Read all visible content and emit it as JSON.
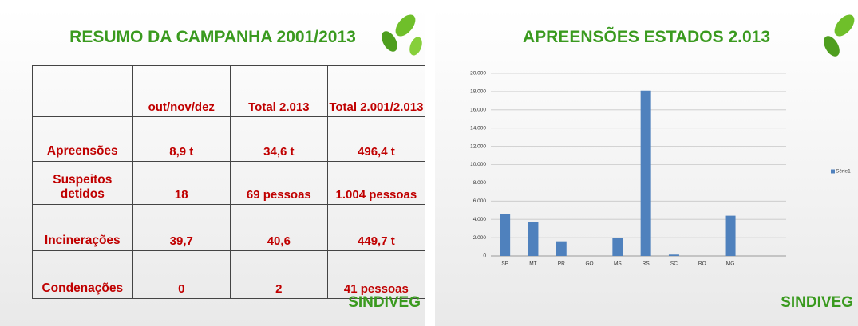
{
  "left_slide": {
    "title": "RESUMO DA CAMPANHA 2001/2013",
    "table": {
      "header": [
        "out/nov/dez",
        "Total 2.013",
        "Total 2.001/2.013"
      ],
      "rows": [
        [
          "Apreensões",
          "8,9 t",
          "34,6 t",
          "496,4 t"
        ],
        [
          "Suspeitos detidos",
          "18",
          "69 pessoas",
          "1.004 pessoas"
        ],
        [
          "Incinerações",
          "39,7",
          "40,6",
          "449,7 t"
        ],
        [
          "Condenações",
          "0",
          "2",
          "41 pessoas"
        ]
      ]
    },
    "logo": "SINDIVEG"
  },
  "chart_data": {
    "type": "bar",
    "title": "APREENSÕES ESTADOS 2.013",
    "categories": [
      "SP",
      "MT",
      "PR",
      "GO",
      "MS",
      "RS",
      "SC",
      "RO",
      "MG"
    ],
    "series": [
      {
        "name": "Série1",
        "color": "#4f81bd",
        "values": [
          4600,
          3700,
          1600,
          0,
          2000,
          18100,
          150,
          0,
          4400
        ]
      }
    ],
    "ylim": [
      0,
      20000
    ],
    "yticks": [
      0,
      {
        "value": 2000,
        "label": "2.000"
      },
      {
        "value": 4000,
        "label": "4.000"
      },
      {
        "value": 6000,
        "label": "6.000"
      },
      {
        "value": 8000,
        "label": "8.000"
      },
      {
        "value": 10000,
        "label": "10.000"
      },
      {
        "value": 12000,
        "label": "12.000"
      },
      {
        "value": 14000,
        "label": "14.000"
      },
      {
        "value": 16000,
        "label": "16.000"
      },
      {
        "value": 18000,
        "label": "18.000"
      },
      {
        "value": 20000,
        "label": "20.000"
      }
    ],
    "grid": true,
    "legend": "right"
  },
  "right_logo": "SINDIVEG"
}
